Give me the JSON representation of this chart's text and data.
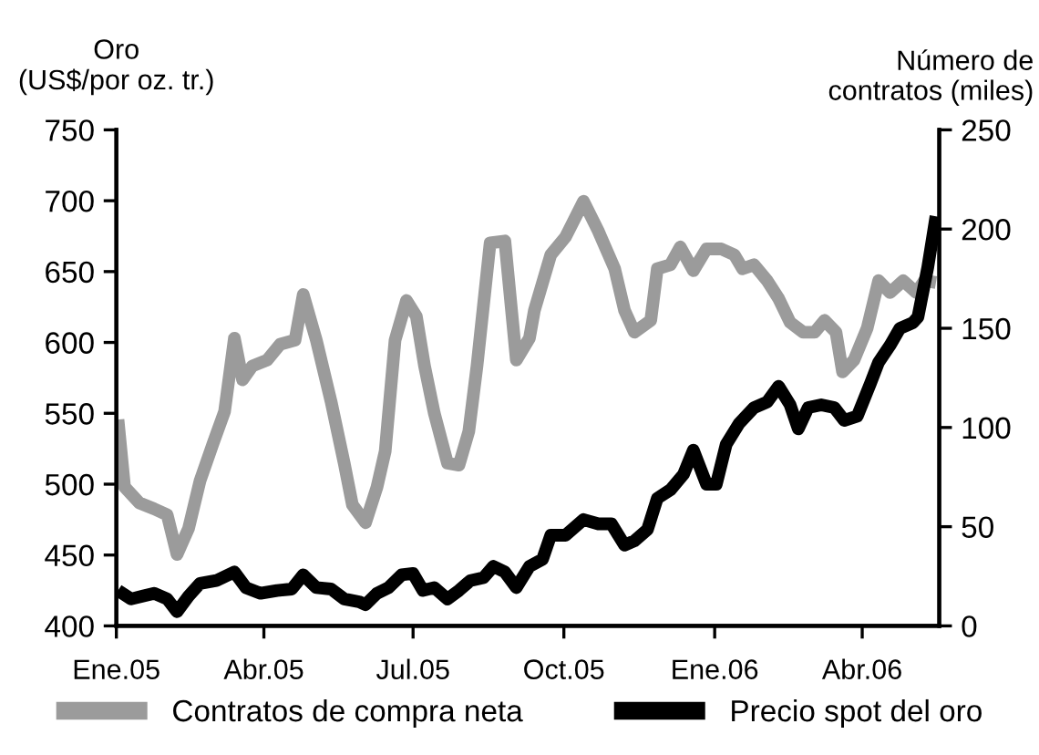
{
  "chart_data": {
    "type": "line",
    "ylabel": "Oro\n(US$/por oz. tr.)",
    "y2label": "Número de\ncontratos (miles)",
    "xlim": [
      "2005-01-01",
      "2006-05-18"
    ],
    "xticks": [
      {
        "value": "2005-01-01",
        "label": "Ene.05"
      },
      {
        "value": "2005-04-01",
        "label": "Abr.05"
      },
      {
        "value": "2005-07-01",
        "label": "Jul.05"
      },
      {
        "value": "2005-10-01",
        "label": "Oct.05"
      },
      {
        "value": "2006-01-01",
        "label": "Ene.06"
      },
      {
        "value": "2006-04-01",
        "label": "Abr.06"
      }
    ],
    "ylim": [
      400,
      750
    ],
    "yticks": [
      400,
      450,
      500,
      550,
      600,
      650,
      700,
      750
    ],
    "y2lim": [
      0,
      250
    ],
    "y2ticks": [
      0,
      50,
      100,
      150,
      200,
      250
    ],
    "grid": false,
    "legend": "bottom",
    "marker": "none",
    "line_style": "solid",
    "series": [
      {
        "name": "Contratos de compra neta",
        "color": "#9b9b9b",
        "axis": "y2",
        "x": [
          "2005-01-02",
          "2005-01-06",
          "2005-01-15",
          "2005-01-24",
          "2005-02-01",
          "2005-02-07",
          "2005-02-14",
          "2005-02-21",
          "2005-03-01",
          "2005-03-08",
          "2005-03-14",
          "2005-03-19",
          "2005-03-25",
          "2005-04-03",
          "2005-04-11",
          "2005-04-20",
          "2005-04-25",
          "2005-05-03",
          "2005-05-12",
          "2005-05-20",
          "2005-05-25",
          "2005-06-02",
          "2005-06-09",
          "2005-06-14",
          "2005-06-20",
          "2005-06-27",
          "2005-07-03",
          "2005-07-08",
          "2005-07-14",
          "2005-07-22",
          "2005-07-29",
          "2005-08-04",
          "2005-08-09",
          "2005-08-17",
          "2005-08-26",
          "2005-09-02",
          "2005-09-10",
          "2005-09-13",
          "2005-09-23",
          "2005-10-02",
          "2005-10-13",
          "2005-10-22",
          "2005-11-01",
          "2005-11-07",
          "2005-11-13",
          "2005-11-23",
          "2005-11-27",
          "2005-12-05",
          "2005-12-11",
          "2005-12-19",
          "2005-12-27",
          "2006-01-05",
          "2006-01-13",
          "2006-01-18",
          "2006-01-25",
          "2006-02-02",
          "2006-02-09",
          "2006-02-16",
          "2006-02-24",
          "2006-03-03",
          "2006-03-09",
          "2006-03-16",
          "2006-03-20",
          "2006-03-27",
          "2006-04-04",
          "2006-04-11",
          "2006-04-18",
          "2006-04-26",
          "2006-05-04",
          "2006-05-09",
          "2006-05-16"
        ],
        "values": [
          104,
          70,
          62,
          59,
          56,
          36,
          49,
          73,
          92,
          108,
          145,
          124,
          131,
          134,
          142,
          144,
          167,
          144,
          113,
          82,
          61,
          52,
          70,
          88,
          144,
          164,
          156,
          131,
          107,
          82,
          81,
          98,
          131,
          193,
          194,
          134,
          145,
          159,
          187,
          196,
          214,
          199,
          180,
          159,
          148,
          154,
          180,
          182,
          191,
          179,
          190,
          190,
          187,
          180,
          182,
          174,
          165,
          153,
          148,
          148,
          154,
          148,
          128,
          134,
          150,
          174,
          168,
          174,
          168,
          174,
          173
        ]
      },
      {
        "name": "Precio spot del oro",
        "color": "#000000",
        "axis": "y",
        "x": [
          "2005-01-02",
          "2005-01-10",
          "2005-01-17",
          "2005-01-24",
          "2005-02-01",
          "2005-02-07",
          "2005-02-14",
          "2005-02-21",
          "2005-03-03",
          "2005-03-14",
          "2005-03-21",
          "2005-03-30",
          "2005-04-09",
          "2005-04-18",
          "2005-04-25",
          "2005-05-03",
          "2005-05-12",
          "2005-05-20",
          "2005-05-29",
          "2005-06-02",
          "2005-06-09",
          "2005-06-16",
          "2005-06-24",
          "2005-07-01",
          "2005-07-07",
          "2005-07-14",
          "2005-07-22",
          "2005-07-29",
          "2005-08-05",
          "2005-08-13",
          "2005-08-19",
          "2005-08-26",
          "2005-09-02",
          "2005-09-10",
          "2005-09-18",
          "2005-09-23",
          "2005-10-02",
          "2005-10-13",
          "2005-10-22",
          "2005-10-30",
          "2005-11-07",
          "2005-11-13",
          "2005-11-21",
          "2005-11-27",
          "2005-12-05",
          "2005-12-13",
          "2005-12-19",
          "2005-12-27",
          "2006-01-02",
          "2006-01-08",
          "2006-01-16",
          "2006-01-25",
          "2006-02-02",
          "2006-02-09",
          "2006-02-16",
          "2006-02-21",
          "2006-02-27",
          "2006-03-07",
          "2006-03-15",
          "2006-03-21",
          "2006-03-29",
          "2006-04-06",
          "2006-04-11",
          "2006-04-18",
          "2006-04-24",
          "2006-05-02",
          "2006-05-05",
          "2006-05-11",
          "2006-05-16"
        ],
        "values": [
          425,
          419,
          421,
          423,
          419,
          410,
          421,
          430,
          432,
          438,
          427,
          423,
          425,
          426,
          436,
          427,
          426,
          419,
          417,
          415,
          423,
          427,
          436,
          437,
          425,
          427,
          419,
          425,
          432,
          434,
          442,
          438,
          427,
          442,
          447,
          464,
          464,
          475,
          472,
          472,
          457,
          460,
          468,
          490,
          496,
          507,
          524,
          500,
          500,
          528,
          543,
          554,
          558,
          569,
          556,
          539,
          554,
          556,
          554,
          545,
          548,
          571,
          586,
          598,
          610,
          614,
          618,
          653,
          689
        ]
      }
    ]
  }
}
